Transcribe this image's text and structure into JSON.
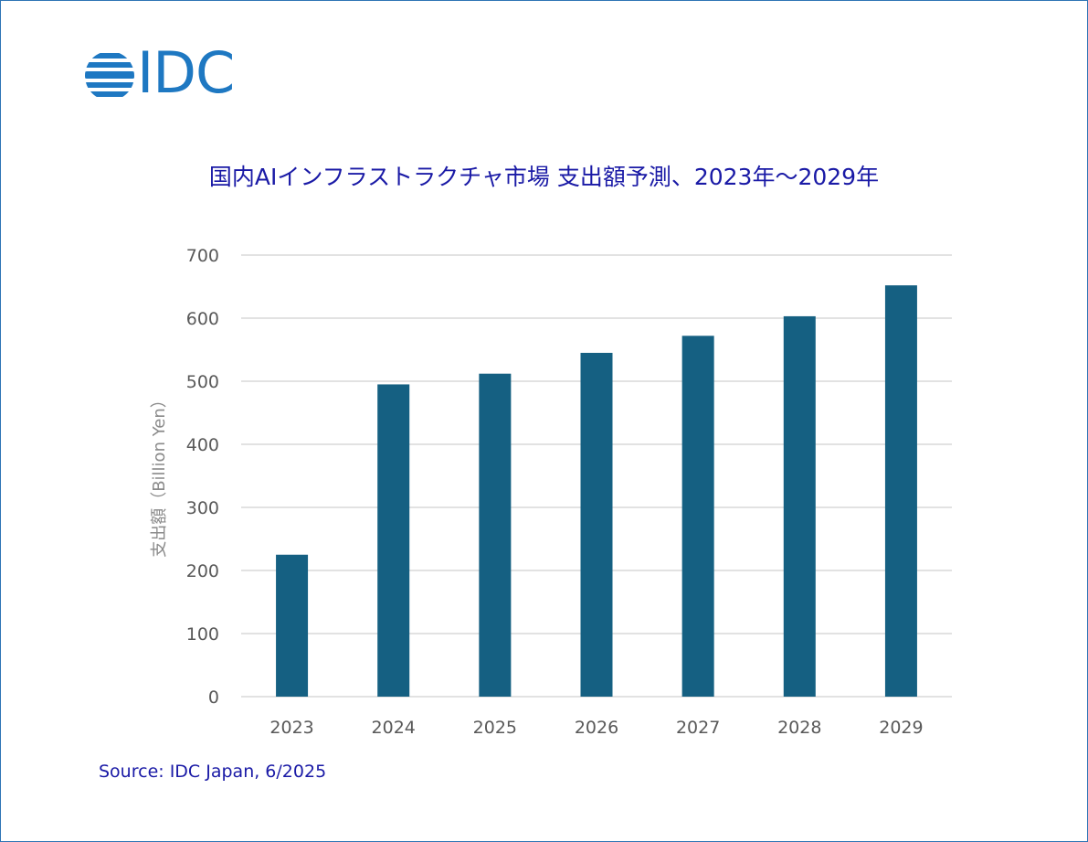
{
  "logo": {
    "text": "IDC",
    "color": "#1e78c2"
  },
  "source_text": "Source: IDC Japan, 6/2025",
  "chart_data": {
    "type": "bar",
    "title": "国内AIインフラストラクチャ市場 支出額予測、2023年～2029年",
    "xlabel": "",
    "ylabel": "支出額（Billion Yen）",
    "categories": [
      "2023",
      "2024",
      "2025",
      "2026",
      "2027",
      "2028",
      "2029"
    ],
    "values": [
      225,
      495,
      512,
      545,
      572,
      603,
      652
    ],
    "ylim": [
      0,
      700
    ],
    "yticks": [
      0,
      100,
      200,
      300,
      400,
      500,
      600,
      700
    ],
    "grid": true,
    "legend": "none",
    "bar_color": "#156082",
    "grid_color": "#d9d9d9"
  }
}
